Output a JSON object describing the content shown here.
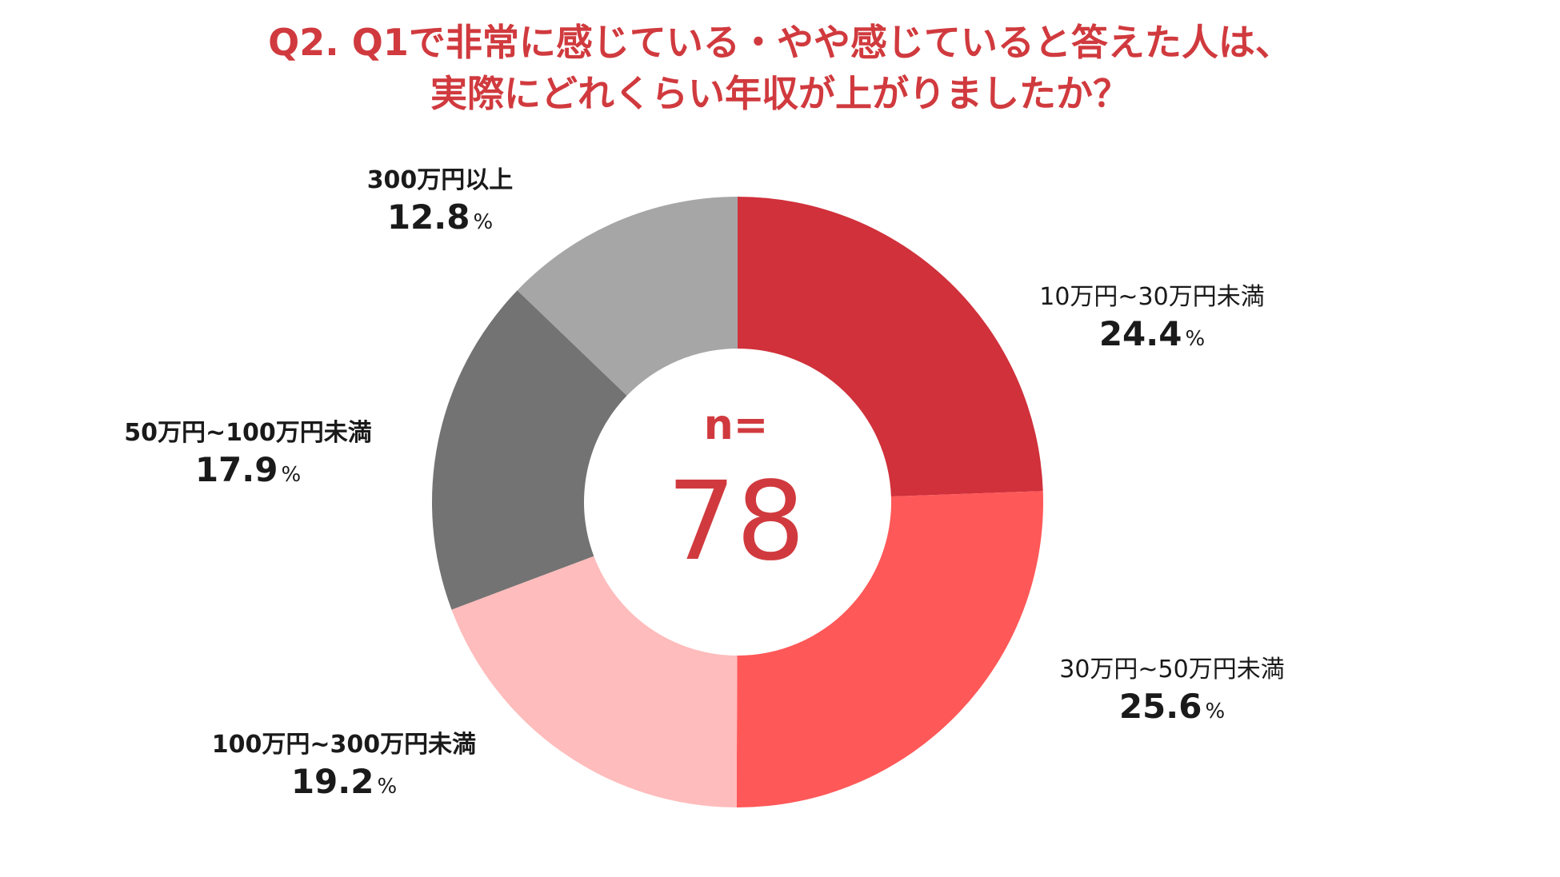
{
  "chart_data": {
    "type": "pie",
    "title_line1": "Q2. Q1で非常に感じている・やや感じていると答えた人は、",
    "title_line2": "実際にどれくらい年収が上がりましたか？",
    "center_label": "n=",
    "center_value": "78",
    "percent_unit": "%",
    "categories": [
      "10万円~30万円未満",
      "30万円~50万円未満",
      "100万円~300万円未満",
      "50万円~100万円未満",
      "300万円以上"
    ],
    "values": [
      24.4,
      25.6,
      19.2,
      17.9,
      12.8
    ],
    "value_labels": [
      "24.4",
      "25.6",
      "19.2",
      "17.9",
      "12.8"
    ],
    "colors": [
      "#d0313b",
      "#ff5858",
      "#ffbcbc",
      "#737373",
      "#a6a6a6"
    ]
  }
}
